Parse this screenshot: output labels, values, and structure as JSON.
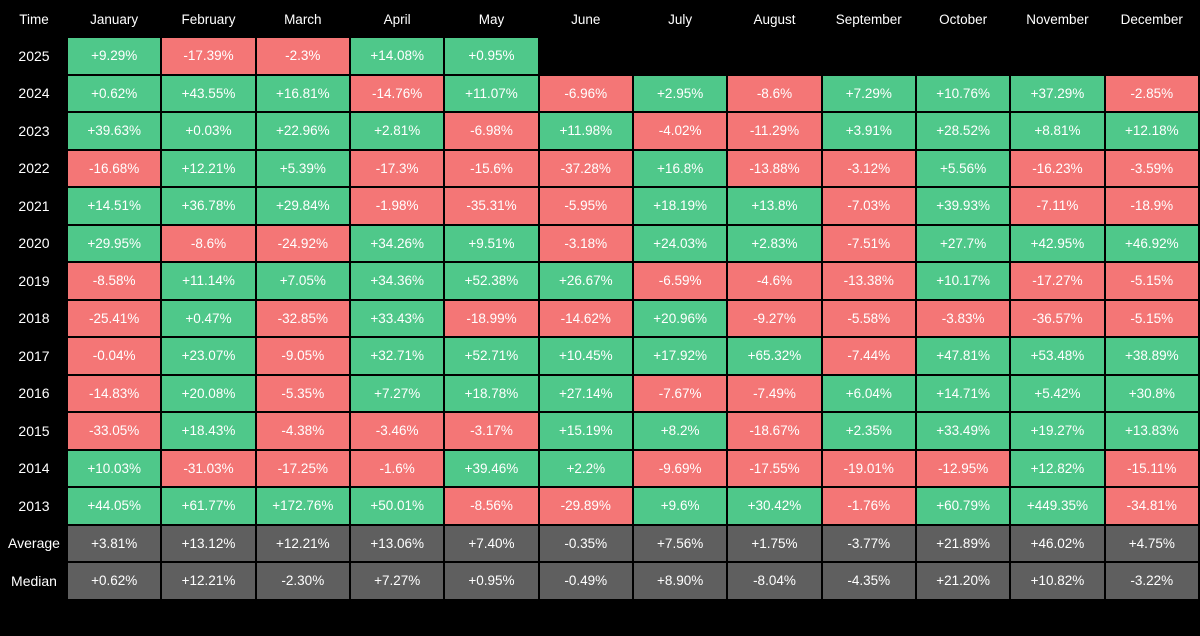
{
  "chart_data": {
    "type": "table",
    "colors": {
      "positive": "#4fc88a",
      "negative": "#f47676",
      "summary": "#5f5f5f",
      "background": "#000000"
    },
    "corner_label": "Time",
    "months": [
      "January",
      "February",
      "March",
      "April",
      "May",
      "June",
      "July",
      "August",
      "September",
      "October",
      "November",
      "December"
    ],
    "rows": [
      {
        "year": "2025",
        "values": [
          "+9.29%",
          "-17.39%",
          "-2.3%",
          "+14.08%",
          "+0.95%",
          "",
          "",
          "",
          "",
          "",
          "",
          ""
        ]
      },
      {
        "year": "2024",
        "values": [
          "+0.62%",
          "+43.55%",
          "+16.81%",
          "-14.76%",
          "+11.07%",
          "-6.96%",
          "+2.95%",
          "-8.6%",
          "+7.29%",
          "+10.76%",
          "+37.29%",
          "-2.85%"
        ]
      },
      {
        "year": "2023",
        "values": [
          "+39.63%",
          "+0.03%",
          "+22.96%",
          "+2.81%",
          "-6.98%",
          "+11.98%",
          "-4.02%",
          "-11.29%",
          "+3.91%",
          "+28.52%",
          "+8.81%",
          "+12.18%"
        ]
      },
      {
        "year": "2022",
        "values": [
          "-16.68%",
          "+12.21%",
          "+5.39%",
          "-17.3%",
          "-15.6%",
          "-37.28%",
          "+16.8%",
          "-13.88%",
          "-3.12%",
          "+5.56%",
          "-16.23%",
          "-3.59%"
        ]
      },
      {
        "year": "2021",
        "values": [
          "+14.51%",
          "+36.78%",
          "+29.84%",
          "-1.98%",
          "-35.31%",
          "-5.95%",
          "+18.19%",
          "+13.8%",
          "-7.03%",
          "+39.93%",
          "-7.11%",
          "-18.9%"
        ]
      },
      {
        "year": "2020",
        "values": [
          "+29.95%",
          "-8.6%",
          "-24.92%",
          "+34.26%",
          "+9.51%",
          "-3.18%",
          "+24.03%",
          "+2.83%",
          "-7.51%",
          "+27.7%",
          "+42.95%",
          "+46.92%"
        ]
      },
      {
        "year": "2019",
        "values": [
          "-8.58%",
          "+11.14%",
          "+7.05%",
          "+34.36%",
          "+52.38%",
          "+26.67%",
          "-6.59%",
          "-4.6%",
          "-13.38%",
          "+10.17%",
          "-17.27%",
          "-5.15%"
        ]
      },
      {
        "year": "2018",
        "values": [
          "-25.41%",
          "+0.47%",
          "-32.85%",
          "+33.43%",
          "-18.99%",
          "-14.62%",
          "+20.96%",
          "-9.27%",
          "-5.58%",
          "-3.83%",
          "-36.57%",
          "-5.15%"
        ]
      },
      {
        "year": "2017",
        "values": [
          "-0.04%",
          "+23.07%",
          "-9.05%",
          "+32.71%",
          "+52.71%",
          "+10.45%",
          "+17.92%",
          "+65.32%",
          "-7.44%",
          "+47.81%",
          "+53.48%",
          "+38.89%"
        ]
      },
      {
        "year": "2016",
        "values": [
          "-14.83%",
          "+20.08%",
          "-5.35%",
          "+7.27%",
          "+18.78%",
          "+27.14%",
          "-7.67%",
          "-7.49%",
          "+6.04%",
          "+14.71%",
          "+5.42%",
          "+30.8%"
        ]
      },
      {
        "year": "2015",
        "values": [
          "-33.05%",
          "+18.43%",
          "-4.38%",
          "-3.46%",
          "-3.17%",
          "+15.19%",
          "+8.2%",
          "-18.67%",
          "+2.35%",
          "+33.49%",
          "+19.27%",
          "+13.83%"
        ]
      },
      {
        "year": "2014",
        "values": [
          "+10.03%",
          "-31.03%",
          "-17.25%",
          "-1.6%",
          "+39.46%",
          "+2.2%",
          "-9.69%",
          "-17.55%",
          "-19.01%",
          "-12.95%",
          "+12.82%",
          "-15.11%"
        ]
      },
      {
        "year": "2013",
        "values": [
          "+44.05%",
          "+61.77%",
          "+172.76%",
          "+50.01%",
          "-8.56%",
          "-29.89%",
          "+9.6%",
          "+30.42%",
          "-1.76%",
          "+60.79%",
          "+449.35%",
          "-34.81%"
        ]
      }
    ],
    "summary": [
      {
        "label": "Average",
        "values": [
          "+3.81%",
          "+13.12%",
          "+12.21%",
          "+13.06%",
          "+7.40%",
          "-0.35%",
          "+7.56%",
          "+1.75%",
          "-3.77%",
          "+21.89%",
          "+46.02%",
          "+4.75%"
        ]
      },
      {
        "label": "Median",
        "values": [
          "+0.62%",
          "+12.21%",
          "-2.30%",
          "+7.27%",
          "+0.95%",
          "-0.49%",
          "+8.90%",
          "-8.04%",
          "-4.35%",
          "+21.20%",
          "+10.82%",
          "-3.22%"
        ]
      }
    ]
  }
}
